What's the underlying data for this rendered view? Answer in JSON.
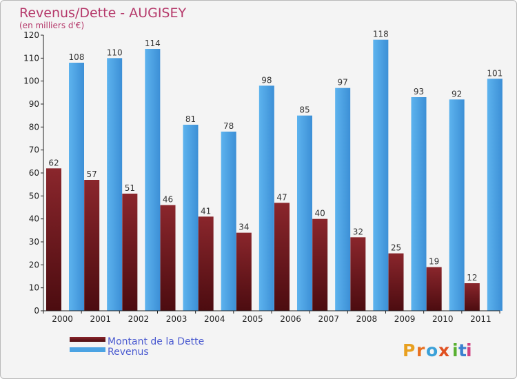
{
  "chart_data": {
    "type": "bar",
    "title": "Revenus/Dette - AUGISEY",
    "subtitle": "(en milliers d'€)",
    "categories": [
      "2000",
      "2001",
      "2002",
      "2003",
      "2004",
      "2005",
      "2006",
      "2007",
      "2008",
      "2009",
      "2010",
      "2011"
    ],
    "series": [
      {
        "name": "Montant de la Dette",
        "values": [
          62,
          57,
          51,
          46,
          41,
          34,
          47,
          40,
          32,
          25,
          19,
          12
        ],
        "color": "#7a1d22"
      },
      {
        "name": "Revenus",
        "values": [
          108,
          110,
          114,
          81,
          78,
          98,
          85,
          97,
          118,
          93,
          92,
          101
        ],
        "color": "#4ba3e3"
      }
    ],
    "ylim": [
      0,
      120
    ],
    "yticks": [
      0,
      10,
      20,
      30,
      40,
      50,
      60,
      70,
      80,
      90,
      100,
      110,
      120
    ],
    "grid": false,
    "legend_position": "bottom-left",
    "data_labels": true
  },
  "logo": {
    "letters": [
      "P",
      "r",
      "o",
      "x",
      "i",
      "t",
      "i"
    ],
    "colors": [
      "#e8a020",
      "#e87020",
      "#3aa0d8",
      "#e05020",
      "#58b030",
      "#3a80d0",
      "#d04080"
    ]
  }
}
